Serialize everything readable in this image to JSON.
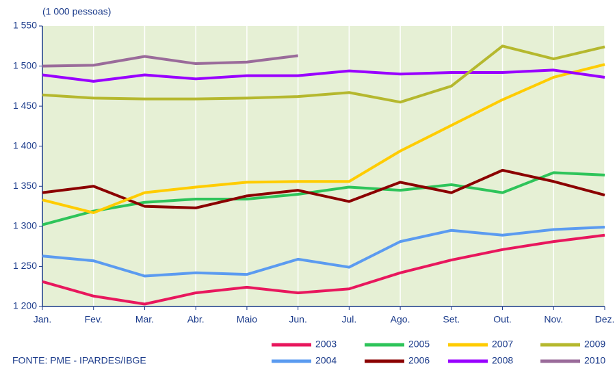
{
  "chart_data": {
    "type": "line",
    "unit_label": "(1 000 pessoas)",
    "source": "FONTE: PME - IPARDES/IBGE",
    "categories": [
      "Jan.",
      "Fev.",
      "Mar.",
      "Abr.",
      "Maio",
      "Jun.",
      "Jul.",
      "Ago.",
      "Set.",
      "Out.",
      "Nov.",
      "Dez."
    ],
    "ylim": [
      1200,
      1550
    ],
    "yticks": [
      {
        "value": 1200,
        "label": "1 200"
      },
      {
        "value": 1250,
        "label": "1 250"
      },
      {
        "value": 1300,
        "label": "1 300"
      },
      {
        "value": 1350,
        "label": "1 350"
      },
      {
        "value": 1400,
        "label": "1 400"
      },
      {
        "value": 1450,
        "label": "1 450"
      },
      {
        "value": 1500,
        "label": "1 500"
      },
      {
        "value": 1550,
        "label": "1 550"
      }
    ],
    "grid": true,
    "legend": "bottom",
    "series": [
      {
        "name": "2003",
        "color": "#e8175d",
        "values": [
          1231,
          1213,
          1203,
          1217,
          1224,
          1217,
          1222,
          1242,
          1258,
          1271,
          1281,
          1289
        ]
      },
      {
        "name": "2004",
        "color": "#5b9bf0",
        "values": [
          1263,
          1257,
          1238,
          1242,
          1240,
          1259,
          1249,
          1281,
          1295,
          1289,
          1296,
          1299
        ]
      },
      {
        "name": "2005",
        "color": "#2ec45a",
        "values": [
          1302,
          1319,
          1330,
          1334,
          1334,
          1340,
          1349,
          1345,
          1352,
          1342,
          1367,
          1364
        ]
      },
      {
        "name": "2006",
        "color": "#8b0000",
        "values": [
          1342,
          1350,
          1325,
          1323,
          1338,
          1345,
          1331,
          1355,
          1342,
          1370,
          1356,
          1339
        ]
      },
      {
        "name": "2007",
        "color": "#ffcc00",
        "values": [
          1333,
          1317,
          1342,
          1349,
          1355,
          1356,
          1356,
          1394,
          1426,
          1458,
          1486,
          1502
        ]
      },
      {
        "name": "2008",
        "color": "#9900ff",
        "values": [
          1489,
          1481,
          1489,
          1484,
          1488,
          1488,
          1494,
          1490,
          1492,
          1492,
          1495,
          1486
        ]
      },
      {
        "name": "2009",
        "color": "#b5b82e",
        "values": [
          1464,
          1460,
          1459,
          1459,
          1460,
          1462,
          1467,
          1455,
          1475,
          1525,
          1509,
          1524
        ]
      },
      {
        "name": "2010",
        "color": "#9a6b9a",
        "values": [
          1500,
          1501,
          1512,
          1503,
          1505,
          1513,
          null,
          null,
          null,
          null,
          null,
          null
        ]
      }
    ]
  }
}
